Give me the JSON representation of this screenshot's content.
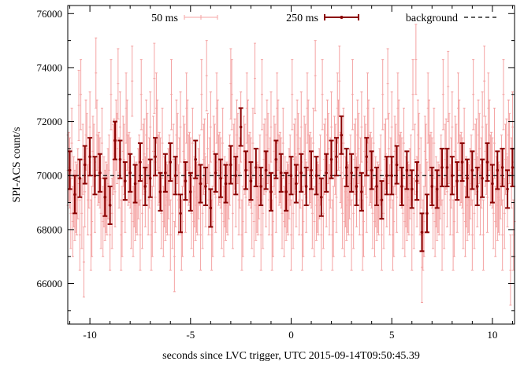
{
  "chart_data": {
    "type": "scatter",
    "title": "",
    "xlabel": "seconds since LVC trigger, UTC 2015-09-14T09:50:45.39",
    "ylabel": "SPI-ACS count/s",
    "xlim": [
      -11.1,
      11.1
    ],
    "ylim": [
      64500,
      76300
    ],
    "x_ticks": [
      -10,
      -5,
      0,
      5,
      10
    ],
    "y_ticks": [
      66000,
      68000,
      70000,
      72000,
      74000,
      76000
    ],
    "grid": false,
    "legend_position": "top",
    "colors": {
      "series_50ms": "#f4a3a3",
      "series_250ms": "#8b0000",
      "background": "#000000"
    },
    "series": [
      {
        "name": "50 ms",
        "style": "errorbar",
        "bin_width": 0.05,
        "x_start": -11.1,
        "x_end": 11.1,
        "error": 1300,
        "y_pattern": [
          70200,
          71800,
          68600,
          70900,
          69400,
          72500,
          69100,
          70300,
          67800,
          71200,
          70600,
          68900,
          71500,
          69700,
          70100,
          73000,
          68300,
          70800,
          69200,
          71000
        ],
        "spikes": [
          {
            "x": -10.55,
            "y": 72600
          },
          {
            "x": -9.7,
            "y": 73800
          },
          {
            "x": -8.6,
            "y": 73400
          },
          {
            "x": -7.9,
            "y": 73500
          },
          {
            "x": -6.8,
            "y": 73600
          },
          {
            "x": -4.2,
            "y": 73700
          },
          {
            "x": -3.0,
            "y": 73400
          },
          {
            "x": -1.8,
            "y": 73600
          },
          {
            "x": 1.2,
            "y": 73700
          },
          {
            "x": 2.4,
            "y": 73500
          },
          {
            "x": 4.8,
            "y": 73400
          },
          {
            "x": 6.2,
            "y": 74300
          },
          {
            "x": 7.8,
            "y": 73300
          },
          {
            "x": 9.6,
            "y": 73500
          },
          {
            "x": -10.3,
            "y": 66800
          },
          {
            "x": -5.8,
            "y": 67000
          },
          {
            "x": 6.5,
            "y": 66600
          },
          {
            "x": 10.9,
            "y": 66500
          }
        ]
      },
      {
        "name": "250 ms",
        "style": "errorbar",
        "x": [
          -11.0,
          -10.75,
          -10.5,
          -10.25,
          -10.0,
          -9.75,
          -9.5,
          -9.25,
          -9.0,
          -8.75,
          -8.5,
          -8.25,
          -8.0,
          -7.75,
          -7.5,
          -7.25,
          -7.0,
          -6.75,
          -6.5,
          -6.25,
          -6.0,
          -5.75,
          -5.5,
          -5.25,
          -5.0,
          -4.75,
          -4.5,
          -4.25,
          -4.0,
          -3.75,
          -3.5,
          -3.25,
          -3.0,
          -2.75,
          -2.5,
          -2.25,
          -2.0,
          -1.75,
          -1.5,
          -1.25,
          -1.0,
          -0.75,
          -0.5,
          -0.25,
          0.0,
          0.25,
          0.5,
          0.75,
          1.0,
          1.25,
          1.5,
          1.75,
          2.0,
          2.25,
          2.5,
          2.75,
          3.0,
          3.25,
          3.5,
          3.75,
          4.0,
          4.25,
          4.5,
          4.75,
          5.0,
          5.25,
          5.5,
          5.75,
          6.0,
          6.25,
          6.5,
          6.75,
          7.0,
          7.25,
          7.5,
          7.75,
          8.0,
          8.25,
          8.5,
          8.75,
          9.0,
          9.25,
          9.5,
          9.75,
          10.0,
          10.25,
          10.5,
          10.75,
          11.0
        ],
        "y": [
          70200,
          69300,
          69900,
          70400,
          70700,
          70000,
          70100,
          69200,
          68900,
          71300,
          70600,
          69800,
          70100,
          69700,
          70500,
          69600,
          69900,
          70700,
          69400,
          70100,
          70500,
          70000,
          68600,
          69800,
          69400,
          70600,
          69700,
          69600,
          68800,
          70100,
          69900,
          69700,
          70400,
          70000,
          71800,
          70200,
          69800,
          70300,
          69600,
          70200,
          69400,
          70600,
          70100,
          69400,
          70000,
          69700,
          70100,
          69600,
          70200,
          70000,
          69200,
          70100,
          70600,
          70700,
          71500,
          70300,
          70100,
          69600,
          69400,
          70700,
          70200,
          69600,
          69100,
          70000,
          70000,
          70400,
          69600,
          70200,
          69500,
          69800,
          67900,
          68600,
          69600,
          69500,
          70300,
          70300,
          70000,
          69800,
          70500,
          69900,
          70200,
          69600,
          69900,
          70500,
          69700,
          70200,
          70300,
          69500,
          70300
        ],
        "error": 700
      },
      {
        "name": "background",
        "style": "dashed-line",
        "y": 70000
      }
    ]
  }
}
